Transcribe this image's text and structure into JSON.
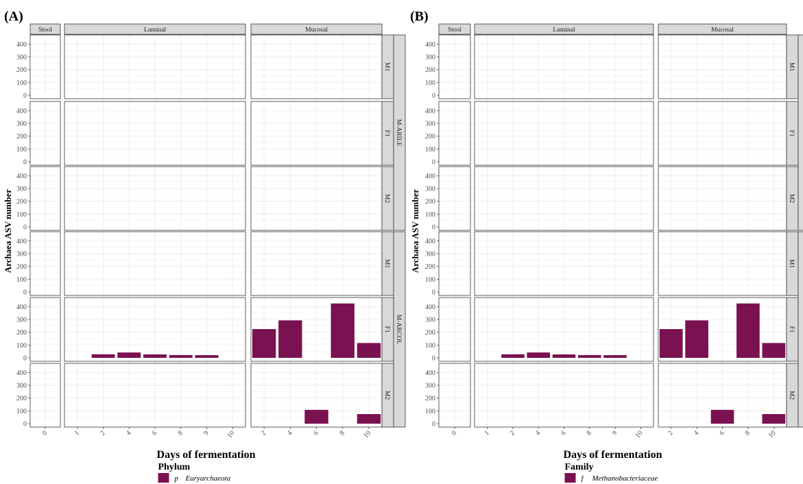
{
  "colors": {
    "bar": "#7a1150",
    "strip": "#d9d9d9",
    "grid": "#ebebeb",
    "border": "#333333"
  },
  "chart_data": [
    {
      "type": "bar",
      "panel_label": "(A)",
      "ylabel": "Archaea ASV number",
      "xlabel": "Days of fermentation",
      "ylim": [
        0,
        450
      ],
      "yticks": [
        0,
        100,
        200,
        300,
        400
      ],
      "columns": [
        {
          "name": "Stool",
          "x": [
            "0"
          ]
        },
        {
          "name": "Luminal",
          "x": [
            "1",
            "2",
            "4",
            "6",
            "8",
            "9",
            "10"
          ]
        },
        {
          "name": "Mucosal",
          "x": [
            "2",
            "4",
            "6",
            "8",
            "10"
          ]
        }
      ],
      "row_groups": [
        {
          "name": "M-ARILE",
          "rows": [
            "M1",
            "F1",
            "M2"
          ]
        },
        {
          "name": "M-ARCOL",
          "rows": [
            "M1",
            "F1",
            "M2"
          ]
        }
      ],
      "series": [
        {
          "name": "p__Euryarchaeota",
          "values": [
            {
              "row": 4,
              "column": "Luminal",
              "x": "2",
              "y": 28
            },
            {
              "row": 4,
              "column": "Luminal",
              "x": "4",
              "y": 42
            },
            {
              "row": 4,
              "column": "Luminal",
              "x": "6",
              "y": 27
            },
            {
              "row": 4,
              "column": "Luminal",
              "x": "8",
              "y": 22
            },
            {
              "row": 4,
              "column": "Luminal",
              "x": "9",
              "y": 21
            },
            {
              "row": 4,
              "column": "Mucosal",
              "x": "2",
              "y": 225
            },
            {
              "row": 4,
              "column": "Mucosal",
              "x": "4",
              "y": 293
            },
            {
              "row": 4,
              "column": "Mucosal",
              "x": "8",
              "y": 425
            },
            {
              "row": 4,
              "column": "Mucosal",
              "x": "10",
              "y": 116
            },
            {
              "row": 5,
              "column": "Mucosal",
              "x": "6",
              "y": 108
            },
            {
              "row": 5,
              "column": "Mucosal",
              "x": "10",
              "y": 75
            }
          ]
        }
      ],
      "legend": {
        "title": "Phylum",
        "items": [
          {
            "prefix": "p",
            "name": "Euryarchaeota"
          }
        ],
        "position": "bottom"
      }
    },
    {
      "type": "bar",
      "panel_label": "(B)",
      "ylabel": "Archaea ASV number",
      "xlabel": "Days of fermentation",
      "ylim": [
        0,
        450
      ],
      "yticks": [
        0,
        100,
        200,
        300,
        400
      ],
      "columns": [
        {
          "name": "Stool",
          "x": [
            "0"
          ]
        },
        {
          "name": "Luminal",
          "x": [
            "1",
            "2",
            "4",
            "6",
            "8",
            "9",
            "10"
          ]
        },
        {
          "name": "Mucosal",
          "x": [
            "2",
            "4",
            "6",
            "8",
            "10"
          ]
        }
      ],
      "row_groups": [
        {
          "name": "",
          "rows": [
            "M1",
            "F1",
            "M2"
          ]
        },
        {
          "name": "",
          "rows": [
            "M1",
            "F1",
            "M2"
          ]
        }
      ],
      "series": [
        {
          "name": "f__Methanobacteriaceae",
          "values": [
            {
              "row": 4,
              "column": "Luminal",
              "x": "2",
              "y": 28
            },
            {
              "row": 4,
              "column": "Luminal",
              "x": "4",
              "y": 42
            },
            {
              "row": 4,
              "column": "Luminal",
              "x": "6",
              "y": 27
            },
            {
              "row": 4,
              "column": "Luminal",
              "x": "8",
              "y": 22
            },
            {
              "row": 4,
              "column": "Luminal",
              "x": "9",
              "y": 21
            },
            {
              "row": 4,
              "column": "Mucosal",
              "x": "2",
              "y": 225
            },
            {
              "row": 4,
              "column": "Mucosal",
              "x": "4",
              "y": 293
            },
            {
              "row": 4,
              "column": "Mucosal",
              "x": "8",
              "y": 425
            },
            {
              "row": 4,
              "column": "Mucosal",
              "x": "10",
              "y": 116
            },
            {
              "row": 5,
              "column": "Mucosal",
              "x": "6",
              "y": 108
            },
            {
              "row": 5,
              "column": "Mucosal",
              "x": "10",
              "y": 75
            }
          ]
        }
      ],
      "legend": {
        "title": "Family",
        "items": [
          {
            "prefix": "f",
            "name": "Methanobacteriaceae"
          }
        ],
        "position": "bottom"
      }
    }
  ]
}
